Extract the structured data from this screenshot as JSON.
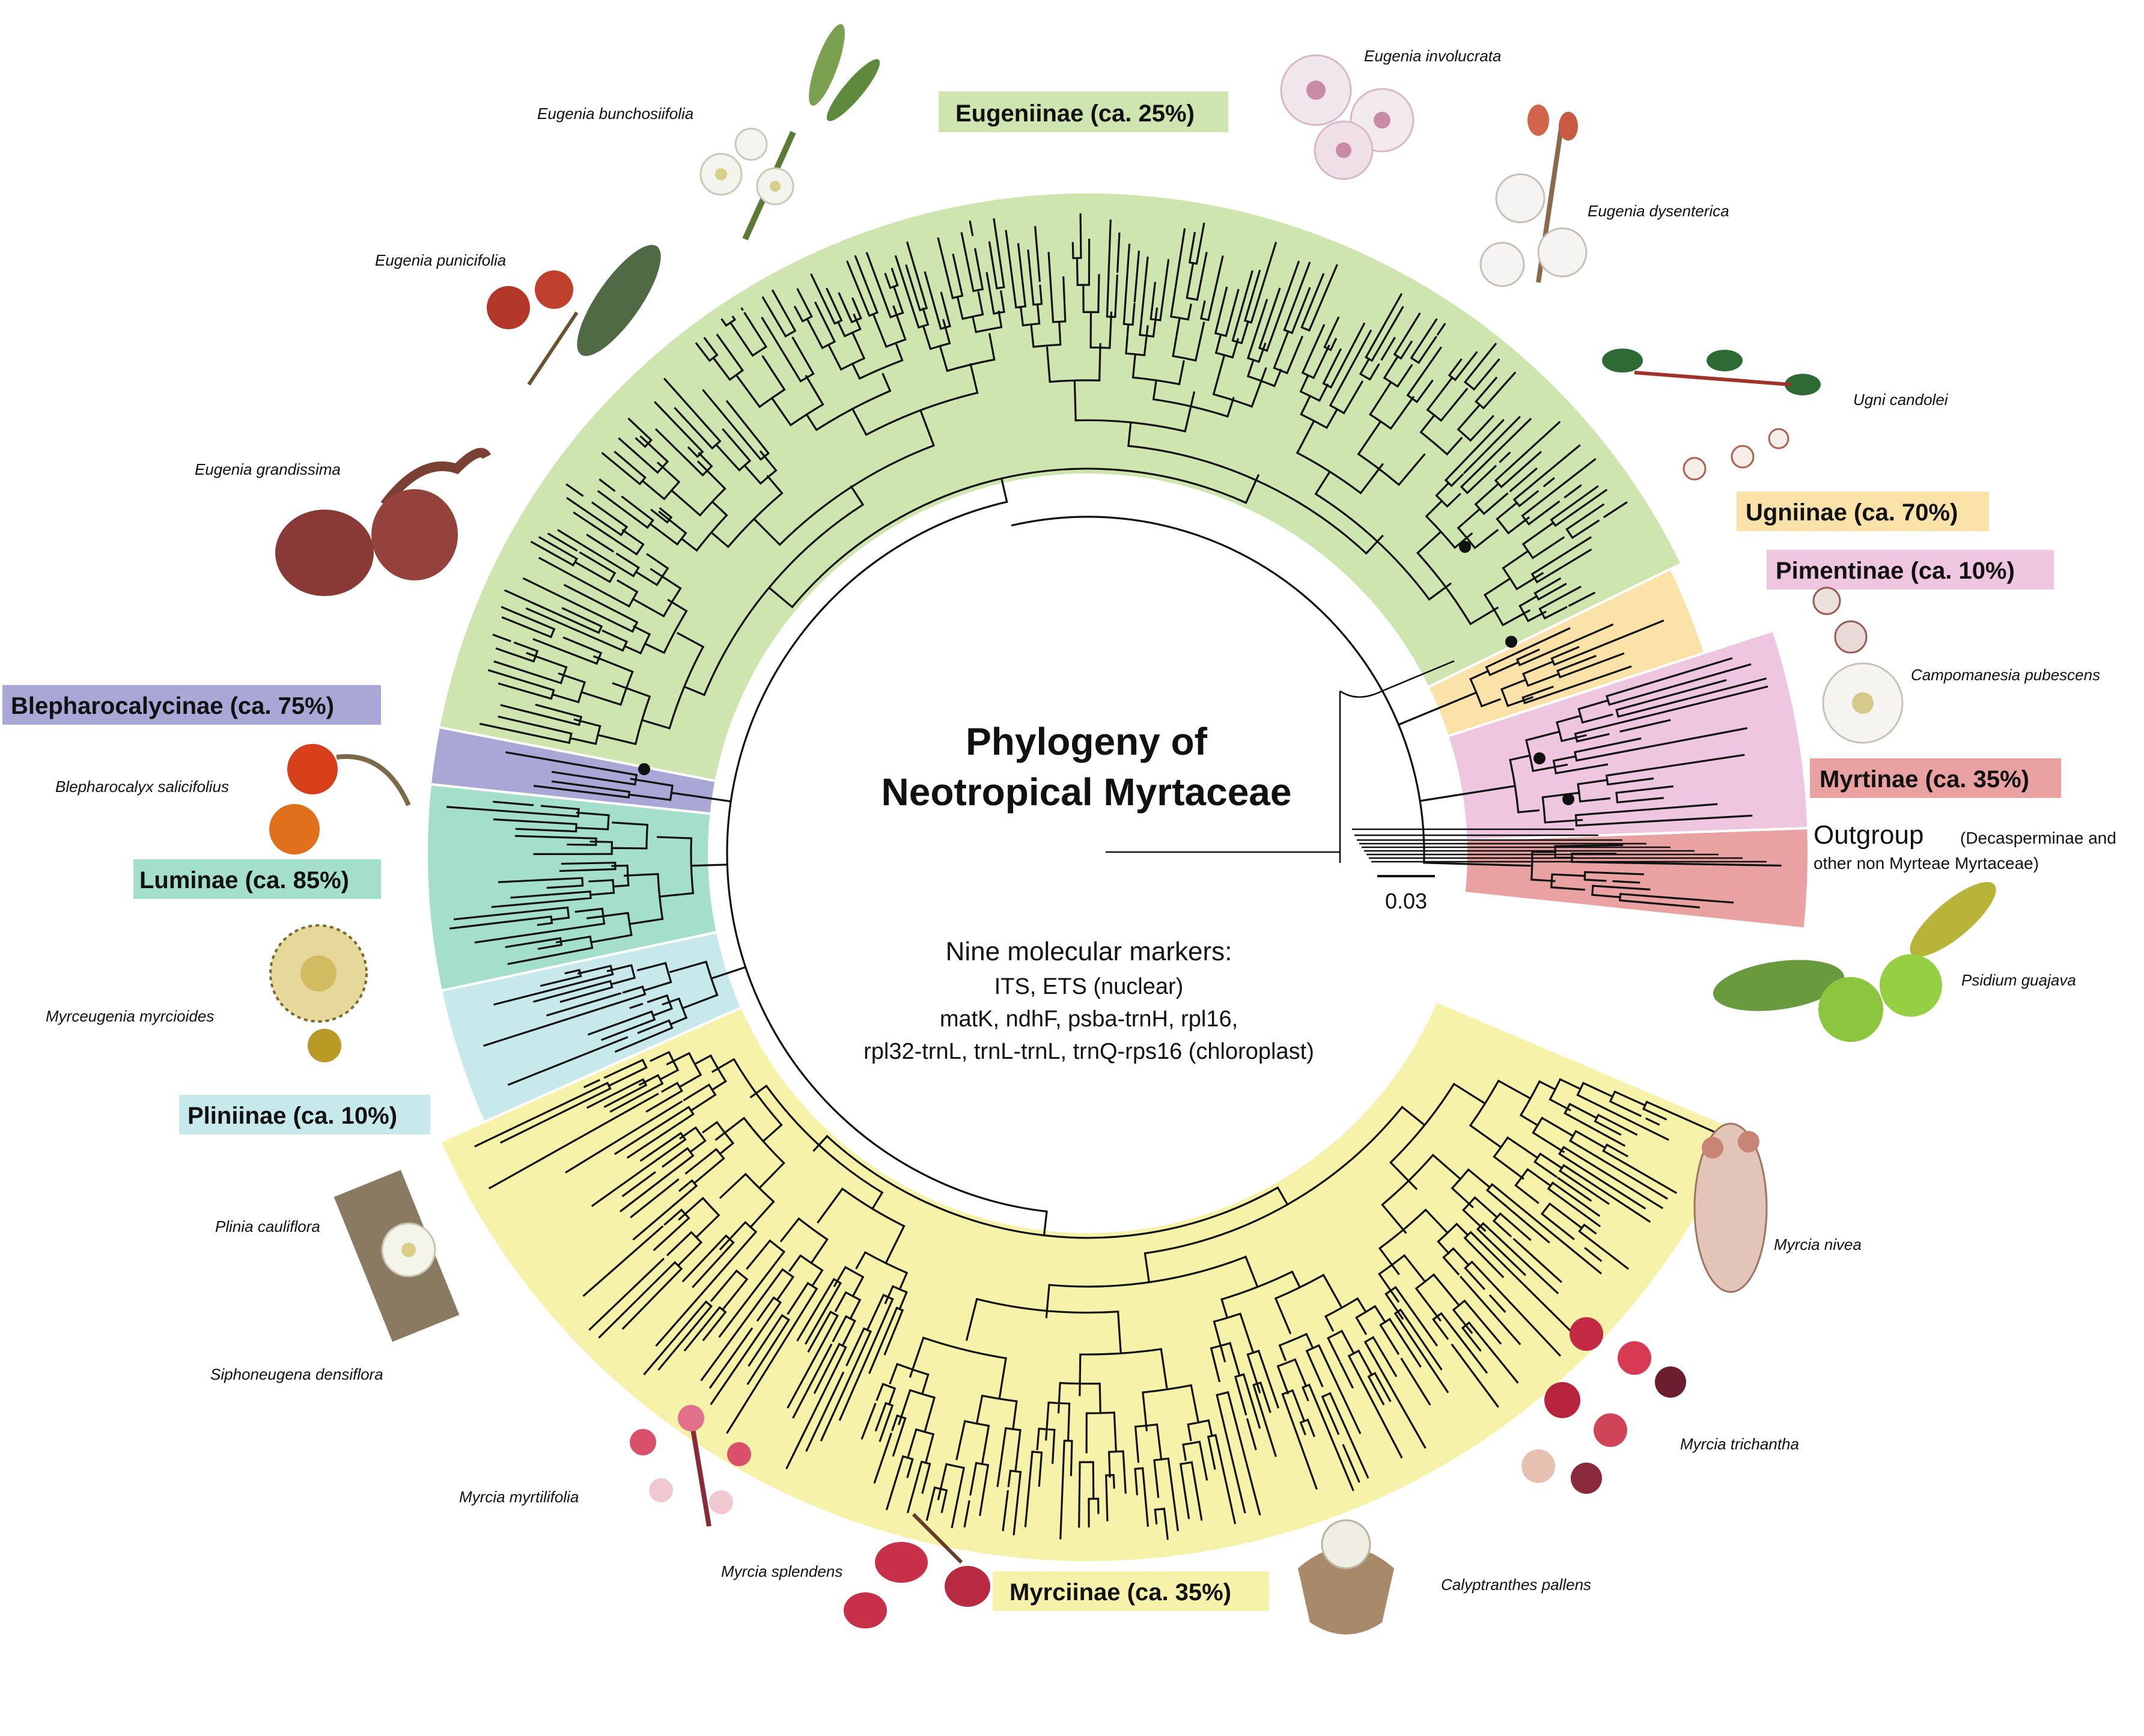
{
  "title": [
    "Phylogeny of",
    "Neotropical Myrtaceae"
  ],
  "markers": {
    "heading": "Nine molecular markers:",
    "lines": [
      "ITS, ETS (nuclear)",
      "matK, ndhF, psba-trnH, rpl16,",
      "rpl32-trnL, trnL-trnL, trnQ-rps16 (chloroplast)"
    ]
  },
  "clades": [
    {
      "label": "Eugeniinae (ca. 25%)",
      "color": "#cfe5b0",
      "box": "#cfe5b0"
    },
    {
      "label": "Ugniinae (ca. 70%)",
      "color": "#fbe2a8",
      "box": "#fbe2a8"
    },
    {
      "label": "Pimentinae (ca. 10%)",
      "color": "#efc6e0",
      "box": "#efc6e0"
    },
    {
      "label": "Myrtinae (ca. 35%)",
      "color": "#e9a1a1",
      "box": "#e9a1a1"
    },
    {
      "label": "Myrciinae (ca. 35%)",
      "color": "#f6f2a9",
      "box": "#f6f2a9"
    },
    {
      "label": "Pliniinae (ca. 10%)",
      "color": "#c8e9ec",
      "box": "#c8e9ec"
    },
    {
      "label": "Luminae (ca. 85%)",
      "color": "#a4dfcb",
      "box": "#a4dfcb"
    },
    {
      "label": "Blepharocalycinae (ca. 75%)",
      "color": "#a9a7d6",
      "box": "#a9a7d6"
    }
  ],
  "outgroup": {
    "label": "Outgroup",
    "note_line1": "(Decasperminae and",
    "note_line2": "other non Myrteae Myrtaceae)"
  },
  "scale_bar": "0.03",
  "species": [
    "Eugenia bunchosiifolia",
    "Eugenia involucrata",
    "Eugenia dysenterica",
    "Eugenia punicifolia",
    "Eugenia grandissima",
    "Ugni candolei",
    "Campomanesia pubescens",
    "Blepharocalyx salicifolius",
    "Myrceugenia myrcioides",
    "Plinia cauliflora",
    "Siphoneugena densiflora",
    "Psidium guajava",
    "Myrcia nivea",
    "Myrcia trichantha",
    "Myrcia myrtilifolia",
    "Myrcia splendens",
    "Calyptranthes pallens"
  ]
}
